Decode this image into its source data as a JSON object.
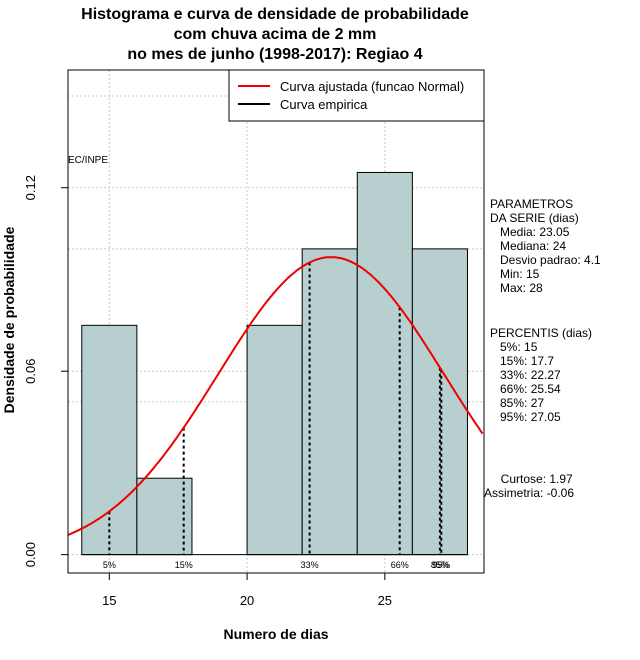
{
  "chart_data": {
    "type": "bar",
    "title": [
      "Histograma e curva de densidade de probabilidade",
      "com chuva acima de 2 mm",
      "no mes de junho (1998-2017): Regiao 4"
    ],
    "xlabel": "Numero de dias",
    "ylabel": "Densidade de probabilidade",
    "xlim": [
      13.5,
      28.6
    ],
    "ylim": [
      -0.006,
      0.1585
    ],
    "x_ticks": [
      15,
      20,
      25
    ],
    "x_tick_labels": [
      "15",
      "20",
      "25"
    ],
    "y_ticks": [
      0.0,
      0.06,
      0.12
    ],
    "y_tick_labels": [
      "0.00",
      "0.06",
      "0.12"
    ],
    "grid": true,
    "bins": [
      {
        "from": 14,
        "to": 16,
        "density": 0.075
      },
      {
        "from": 16,
        "to": 18,
        "density": 0.025
      },
      {
        "from": 18,
        "to": 20,
        "density": 0.0
      },
      {
        "from": 20,
        "to": 22,
        "density": 0.075
      },
      {
        "from": 22,
        "to": 24,
        "density": 0.1
      },
      {
        "from": 24,
        "to": 26,
        "density": 0.125
      },
      {
        "from": 26,
        "to": 28,
        "density": 0.1
      }
    ],
    "bar_color": "#b7cfcf",
    "normal_curve": {
      "mean": 23.05,
      "sd": 4.1,
      "color": "#ee0000"
    },
    "percentile_lines": [
      {
        "label": "5%",
        "x": 15
      },
      {
        "label": "15%",
        "x": 17.7
      },
      {
        "label": "33%",
        "x": 22.27
      },
      {
        "label": "66%",
        "x": 25.54
      },
      {
        "label": "85%",
        "x": 27
      },
      {
        "label": "95%",
        "x": 27.05
      }
    ],
    "legend": {
      "position": "top-right",
      "entries": [
        {
          "label": "Curva ajustada (funcao Normal)",
          "color": "#ee0000"
        },
        {
          "label": "Curva empirica",
          "color": "#000000"
        }
      ]
    },
    "watermark": "EC/INPE"
  },
  "side_panel": {
    "parametros": [
      "PARAMETROS",
      "DA SERIE (dias)",
      "   Media: 23.05",
      "   Mediana: 24",
      "   Desvio padrao: 4.1",
      "   Min: 15",
      "   Max: 28"
    ],
    "percentis": [
      "PERCENTIS (dias)",
      "   5%: 15",
      "   15%: 17.7",
      "   33%: 22.27",
      "   66%: 25.54",
      "   85%: 27",
      "   95%: 27.05"
    ],
    "shape": [
      "     Curtose: 1.97",
      "Assimetria: -0.06"
    ]
  }
}
